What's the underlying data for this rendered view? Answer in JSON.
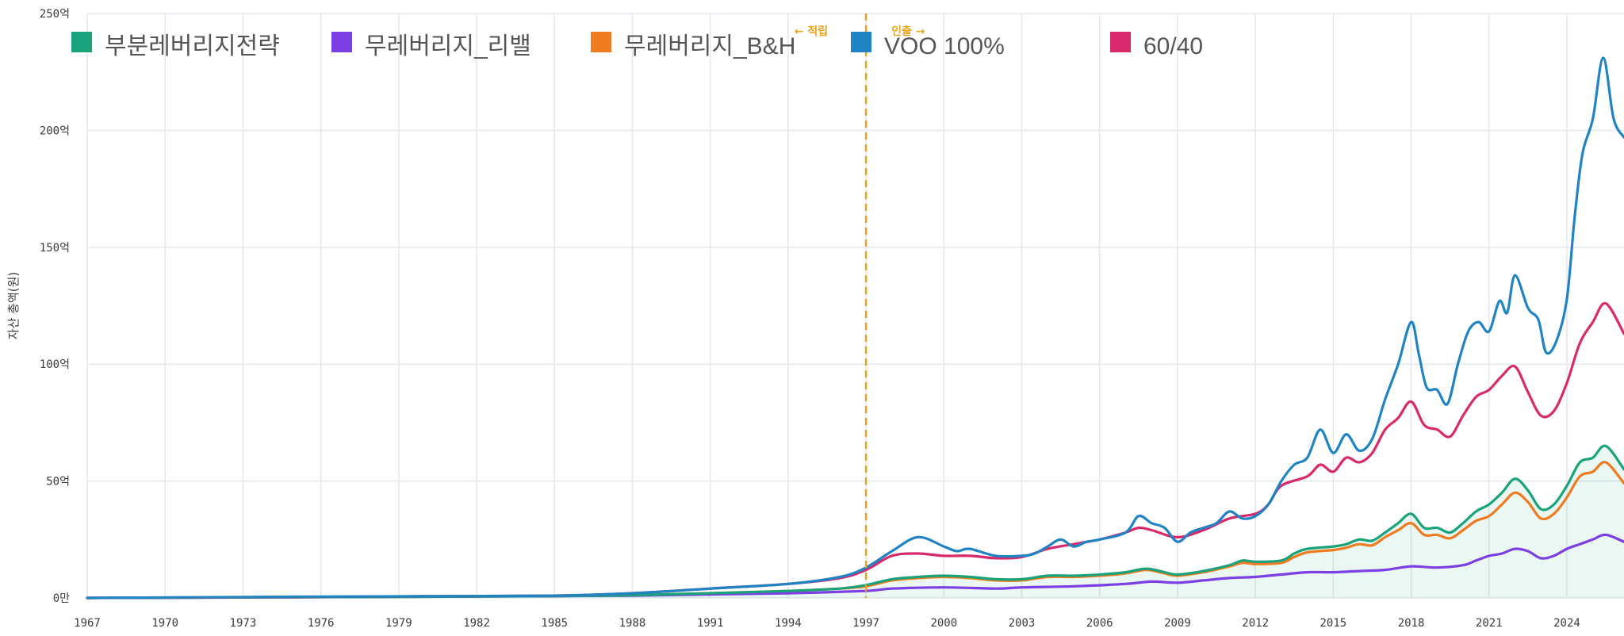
{
  "chart_data": {
    "type": "line",
    "title": "",
    "xlabel": "",
    "ylabel": "자산 총액(원)",
    "xlim": [
      1967,
      2026.2
    ],
    "ylim": [
      0,
      250
    ],
    "x_ticks": [
      1967,
      1970,
      1973,
      1976,
      1979,
      1982,
      1985,
      1988,
      1991,
      1994,
      1997,
      2000,
      2003,
      2006,
      2009,
      2012,
      2015,
      2018,
      2021,
      2024
    ],
    "y_ticks": [
      {
        "value": 0,
        "label": "0만"
      },
      {
        "value": 50,
        "label": "50억"
      },
      {
        "value": 100,
        "label": "100억"
      },
      {
        "value": 150,
        "label": "150억"
      },
      {
        "value": 200,
        "label": "200억"
      },
      {
        "value": 250,
        "label": "250억"
      }
    ],
    "grid": true,
    "legend_position": "top",
    "annotation": {
      "x": 1997,
      "color": "#e8a317",
      "left_label": "← 적립",
      "right_label": "인출 →"
    },
    "series": [
      {
        "name": "부분레버리지전략",
        "color": "#1aa37a",
        "fill": true,
        "points": [
          [
            1967,
            0
          ],
          [
            1975,
            0.3
          ],
          [
            1980,
            0.5
          ],
          [
            1985,
            0.8
          ],
          [
            1988,
            1.2
          ],
          [
            1991,
            2.0
          ],
          [
            1994,
            3.0
          ],
          [
            1996,
            4.0
          ],
          [
            1997,
            5.5
          ],
          [
            1998,
            8.0
          ],
          [
            1999,
            9.0
          ],
          [
            2000,
            9.5
          ],
          [
            2001,
            9.0
          ],
          [
            2002,
            8.0
          ],
          [
            2003,
            8.0
          ],
          [
            2004,
            9.5
          ],
          [
            2005,
            9.5
          ],
          [
            2006,
            10.0
          ],
          [
            2007,
            11.0
          ],
          [
            2007.8,
            12.5
          ],
          [
            2008.5,
            11.0
          ],
          [
            2009,
            10.0
          ],
          [
            2010,
            11.5
          ],
          [
            2011,
            14.0
          ],
          [
            2011.5,
            16.0
          ],
          [
            2012,
            15.5
          ],
          [
            2013,
            16.0
          ],
          [
            2013.5,
            19.0
          ],
          [
            2014,
            21.0
          ],
          [
            2015,
            22.0
          ],
          [
            2015.5,
            23.0
          ],
          [
            2016,
            25.0
          ],
          [
            2016.5,
            24.5
          ],
          [
            2017,
            28.0
          ],
          [
            2017.5,
            32.0
          ],
          [
            2018,
            36.0
          ],
          [
            2018.5,
            30.0
          ],
          [
            2019,
            30.0
          ],
          [
            2019.5,
            28.0
          ],
          [
            2020,
            32.0
          ],
          [
            2020.5,
            37.0
          ],
          [
            2021,
            40.0
          ],
          [
            2021.5,
            45.0
          ],
          [
            2022,
            51.0
          ],
          [
            2022.5,
            46.0
          ],
          [
            2023,
            38.0
          ],
          [
            2023.5,
            40.0
          ],
          [
            2024,
            48.0
          ],
          [
            2024.5,
            58.0
          ],
          [
            2025,
            60.0
          ],
          [
            2025.5,
            65.0
          ],
          [
            2026.2,
            55.0
          ]
        ]
      },
      {
        "name": "무레버리지_리밸",
        "color": "#7b3fe4",
        "fill": false,
        "points": [
          [
            1967,
            0
          ],
          [
            1975,
            0.3
          ],
          [
            1980,
            0.6
          ],
          [
            1985,
            0.8
          ],
          [
            1988,
            1.0
          ],
          [
            1991,
            1.5
          ],
          [
            1994,
            2.0
          ],
          [
            1997,
            3.0
          ],
          [
            1998,
            4.0
          ],
          [
            2000,
            4.5
          ],
          [
            2002,
            4.0
          ],
          [
            2003,
            4.5
          ],
          [
            2005,
            5.0
          ],
          [
            2007,
            6.0
          ],
          [
            2008,
            7.0
          ],
          [
            2009,
            6.5
          ],
          [
            2010,
            7.5
          ],
          [
            2011,
            8.5
          ],
          [
            2012,
            9.0
          ],
          [
            2013,
            10.0
          ],
          [
            2014,
            11.0
          ],
          [
            2015,
            11.0
          ],
          [
            2016,
            11.5
          ],
          [
            2017,
            12.0
          ],
          [
            2018,
            13.5
          ],
          [
            2019,
            13.0
          ],
          [
            2020,
            14.0
          ],
          [
            2020.5,
            16.0
          ],
          [
            2021,
            18.0
          ],
          [
            2021.5,
            19.0
          ],
          [
            2022,
            21.0
          ],
          [
            2022.5,
            20.0
          ],
          [
            2023,
            17.0
          ],
          [
            2023.5,
            18.0
          ],
          [
            2024,
            21.0
          ],
          [
            2024.5,
            23.0
          ],
          [
            2025,
            25.0
          ],
          [
            2025.5,
            27.0
          ],
          [
            2026.2,
            24.0
          ]
        ]
      },
      {
        "name": "무레버리지_B&H",
        "color": "#ee7b1f",
        "fill": false,
        "points": [
          [
            1967,
            0
          ],
          [
            1975,
            0.3
          ],
          [
            1980,
            0.5
          ],
          [
            1985,
            0.8
          ],
          [
            1988,
            1.2
          ],
          [
            1991,
            2.0
          ],
          [
            1994,
            3.0
          ],
          [
            1996,
            4.0
          ],
          [
            1997,
            5.0
          ],
          [
            1998,
            7.5
          ],
          [
            1999,
            8.5
          ],
          [
            2000,
            9.0
          ],
          [
            2001,
            8.5
          ],
          [
            2002,
            7.5
          ],
          [
            2003,
            7.5
          ],
          [
            2004,
            9.0
          ],
          [
            2005,
            9.0
          ],
          [
            2006,
            9.5
          ],
          [
            2007,
            10.5
          ],
          [
            2007.8,
            12.0
          ],
          [
            2008.5,
            10.5
          ],
          [
            2009,
            9.5
          ],
          [
            2010,
            11.0
          ],
          [
            2011,
            13.5
          ],
          [
            2011.5,
            15.0
          ],
          [
            2012,
            14.5
          ],
          [
            2013,
            15.0
          ],
          [
            2013.5,
            17.5
          ],
          [
            2014,
            19.5
          ],
          [
            2015,
            20.5
          ],
          [
            2015.5,
            21.5
          ],
          [
            2016,
            23.0
          ],
          [
            2016.5,
            22.5
          ],
          [
            2017,
            26.0
          ],
          [
            2017.5,
            29.0
          ],
          [
            2018,
            32.0
          ],
          [
            2018.5,
            27.0
          ],
          [
            2019,
            27.0
          ],
          [
            2019.5,
            25.5
          ],
          [
            2020,
            29.0
          ],
          [
            2020.5,
            33.0
          ],
          [
            2021,
            35.0
          ],
          [
            2021.5,
            40.0
          ],
          [
            2022,
            45.0
          ],
          [
            2022.5,
            41.0
          ],
          [
            2023,
            34.0
          ],
          [
            2023.5,
            36.0
          ],
          [
            2024,
            43.0
          ],
          [
            2024.5,
            52.0
          ],
          [
            2025,
            54.0
          ],
          [
            2025.5,
            58.0
          ],
          [
            2026.2,
            49.0
          ]
        ]
      },
      {
        "name": "VOO 100%",
        "color": "#1f83c4",
        "fill": false,
        "points": [
          [
            1967,
            0
          ],
          [
            1975,
            0.5
          ],
          [
            1980,
            0.7
          ],
          [
            1985,
            1.0
          ],
          [
            1988,
            2.0
          ],
          [
            1991,
            4.0
          ],
          [
            1994,
            6.0
          ],
          [
            1996,
            9.0
          ],
          [
            1997,
            13.0
          ],
          [
            1998,
            20.0
          ],
          [
            1999,
            26.0
          ],
          [
            2000,
            22.0
          ],
          [
            2000.5,
            20.0
          ],
          [
            2001,
            21.0
          ],
          [
            2002,
            18.0
          ],
          [
            2003,
            18.0
          ],
          [
            2003.5,
            19.0
          ],
          [
            2004,
            22.0
          ],
          [
            2004.5,
            25.0
          ],
          [
            2005,
            22.0
          ],
          [
            2005.5,
            24.0
          ],
          [
            2006,
            25.0
          ],
          [
            2007,
            28.0
          ],
          [
            2007.5,
            35.0
          ],
          [
            2008,
            32.0
          ],
          [
            2008.5,
            30.0
          ],
          [
            2009,
            24.0
          ],
          [
            2009.5,
            28.0
          ],
          [
            2010,
            30.0
          ],
          [
            2010.5,
            32.0
          ],
          [
            2011,
            37.0
          ],
          [
            2011.5,
            34.0
          ],
          [
            2012,
            35.0
          ],
          [
            2012.5,
            40.0
          ],
          [
            2013,
            50.0
          ],
          [
            2013.5,
            57.0
          ],
          [
            2014,
            60.0
          ],
          [
            2014.5,
            72.0
          ],
          [
            2015,
            62.0
          ],
          [
            2015.5,
            70.0
          ],
          [
            2016,
            63.0
          ],
          [
            2016.5,
            68.0
          ],
          [
            2017,
            85.0
          ],
          [
            2017.5,
            100.0
          ],
          [
            2018,
            118.0
          ],
          [
            2018.3,
            104.0
          ],
          [
            2018.6,
            90.0
          ],
          [
            2019,
            89.0
          ],
          [
            2019.4,
            83.0
          ],
          [
            2019.8,
            100.0
          ],
          [
            2020.2,
            114.0
          ],
          [
            2020.6,
            118.0
          ],
          [
            2021,
            114.0
          ],
          [
            2021.4,
            127.0
          ],
          [
            2021.7,
            122.0
          ],
          [
            2022,
            138.0
          ],
          [
            2022.5,
            124.0
          ],
          [
            2022.9,
            119.0
          ],
          [
            2023.2,
            105.0
          ],
          [
            2023.6,
            110.0
          ],
          [
            2024,
            128.0
          ],
          [
            2024.3,
            163.0
          ],
          [
            2024.6,
            190.0
          ],
          [
            2025,
            205.0
          ],
          [
            2025.4,
            231.0
          ],
          [
            2025.8,
            205.0
          ],
          [
            2026.2,
            197.0
          ]
        ]
      },
      {
        "name": "60/40",
        "color": "#d82a6b",
        "fill": false,
        "points": [
          [
            1967,
            0
          ],
          [
            1975,
            0.4
          ],
          [
            1980,
            0.7
          ],
          [
            1985,
            1.0
          ],
          [
            1988,
            2.0
          ],
          [
            1991,
            4.0
          ],
          [
            1994,
            6.0
          ],
          [
            1996,
            8.5
          ],
          [
            1997,
            12.0
          ],
          [
            1998,
            18.0
          ],
          [
            1999,
            19.0
          ],
          [
            2000,
            18.0
          ],
          [
            2001,
            18.0
          ],
          [
            2002,
            17.0
          ],
          [
            2003,
            17.5
          ],
          [
            2004,
            21.0
          ],
          [
            2005,
            23.0
          ],
          [
            2006,
            25.0
          ],
          [
            2007,
            28.0
          ],
          [
            2007.5,
            30.0
          ],
          [
            2008,
            29.0
          ],
          [
            2009,
            26.0
          ],
          [
            2010,
            29.0
          ],
          [
            2011,
            34.0
          ],
          [
            2012,
            36.0
          ],
          [
            2012.5,
            40.0
          ],
          [
            2013,
            48.0
          ],
          [
            2014,
            52.0
          ],
          [
            2014.5,
            57.0
          ],
          [
            2015,
            54.0
          ],
          [
            2015.5,
            60.0
          ],
          [
            2016,
            58.0
          ],
          [
            2016.5,
            62.0
          ],
          [
            2017,
            72.0
          ],
          [
            2017.5,
            77.0
          ],
          [
            2018,
            84.0
          ],
          [
            2018.5,
            74.0
          ],
          [
            2019,
            72.0
          ],
          [
            2019.5,
            69.0
          ],
          [
            2020,
            78.0
          ],
          [
            2020.5,
            86.0
          ],
          [
            2021,
            89.0
          ],
          [
            2021.5,
            95.0
          ],
          [
            2022,
            99.0
          ],
          [
            2022.5,
            88.0
          ],
          [
            2023,
            78.0
          ],
          [
            2023.5,
            80.0
          ],
          [
            2024,
            92.0
          ],
          [
            2024.5,
            109.0
          ],
          [
            2025,
            118.0
          ],
          [
            2025.5,
            126.0
          ],
          [
            2026.2,
            113.0
          ]
        ]
      }
    ]
  }
}
